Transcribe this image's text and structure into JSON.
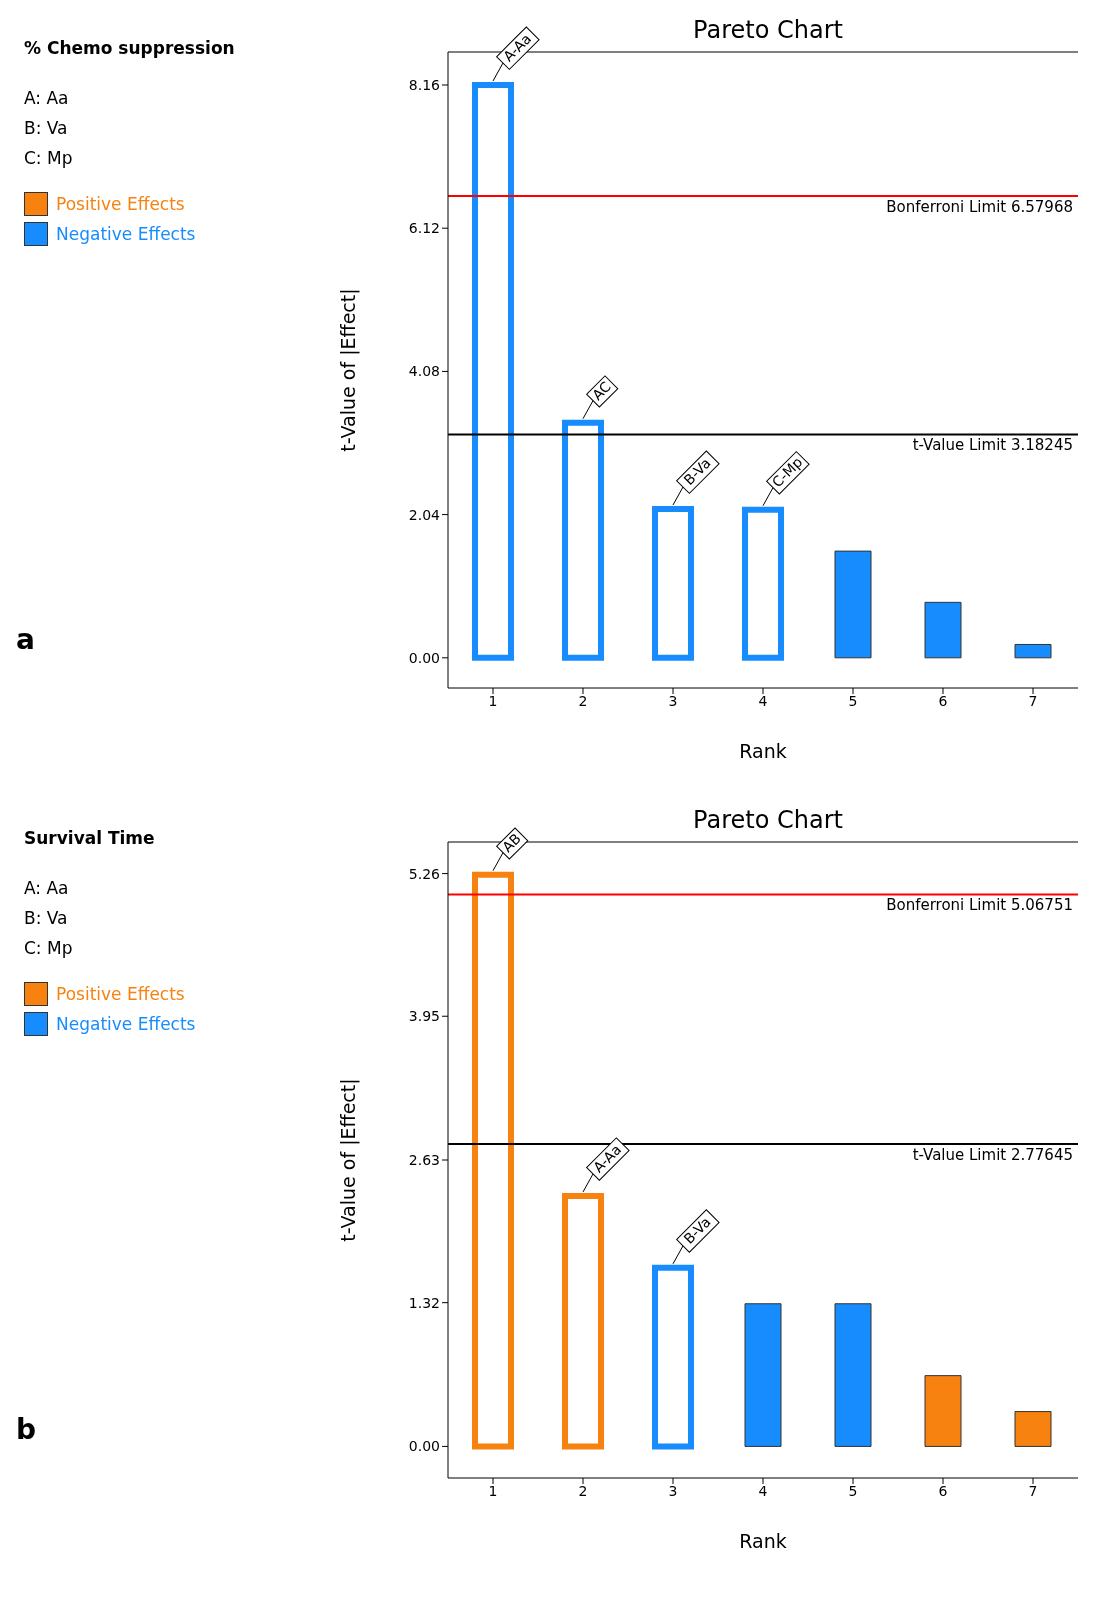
{
  "chart_data": [
    {
      "type": "bar",
      "title": "Pareto Chart",
      "legend_title": "% Chemo suppression",
      "xlabel": "Rank",
      "ylabel": "t-Value of |Effect|",
      "categories": [
        "1",
        "2",
        "3",
        "4",
        "5",
        "6",
        "7"
      ],
      "series": [
        {
          "name": "Positive Effects",
          "color": "#f7820f",
          "values": [
            null,
            null,
            null,
            null,
            null,
            null,
            null
          ]
        },
        {
          "name": "Negative Effects",
          "color": "#168cff",
          "values": [
            8.16,
            3.35,
            2.12,
            2.11,
            1.52,
            0.79,
            0.19
          ]
        }
      ],
      "ylim": [
        -0.43,
        8.63
      ],
      "yticks": [
        {
          "value": 0,
          "label": "0.00"
        },
        2.04,
        4.08,
        6.12,
        8.16
      ],
      "ref_lines": [
        {
          "axis": "y",
          "value": 6.57968,
          "label": "Bonferroni Limit 6.57968",
          "color": "#ff0000"
        },
        {
          "axis": "y",
          "value": 3.18245,
          "label": "t-Value Limit 3.18245",
          "color": "#000000"
        }
      ],
      "annotations": [
        "A: Aa\nB: Va\nC: Mp",
        "a",
        "A-Aa",
        "AC",
        "B-Va",
        "C-Mp"
      ],
      "legend": "left",
      "grid": false
    },
    {
      "type": "bar",
      "title": "Pareto Chart",
      "legend_title": "Survival Time",
      "xlabel": "Rank",
      "ylabel": "t-Value of |Effect|",
      "categories": [
        "1",
        "2",
        "3",
        "4",
        "5",
        "6",
        "7"
      ],
      "series": [
        {
          "name": "Positive Effects",
          "color": "#f7820f",
          "values": [
            5.25,
            2.3,
            null,
            null,
            null,
            0.65,
            0.32
          ]
        },
        {
          "name": "Negative Effects",
          "color": "#168cff",
          "values": [
            null,
            null,
            1.64,
            1.31,
            1.31,
            null,
            null
          ]
        }
      ],
      "ylim": [
        -0.29,
        5.55
      ],
      "yticks": [
        {
          "value": 0,
          "label": "0.00"
        },
        1.32,
        2.63,
        3.95,
        5.26
      ],
      "ref_lines": [
        {
          "axis": "y",
          "value": 5.06751,
          "label": "Bonferroni Limit 5.06751",
          "color": "#ff0000"
        },
        {
          "axis": "y",
          "value": 2.77645,
          "label": "t-Value Limit 2.77645",
          "color": "#000000"
        }
      ],
      "annotations": [
        "A: Aa\nB: Va\nC: Mp",
        "b",
        "AB",
        "A-Aa",
        "B-Va"
      ],
      "legend": "left",
      "grid": false
    }
  ]
}
